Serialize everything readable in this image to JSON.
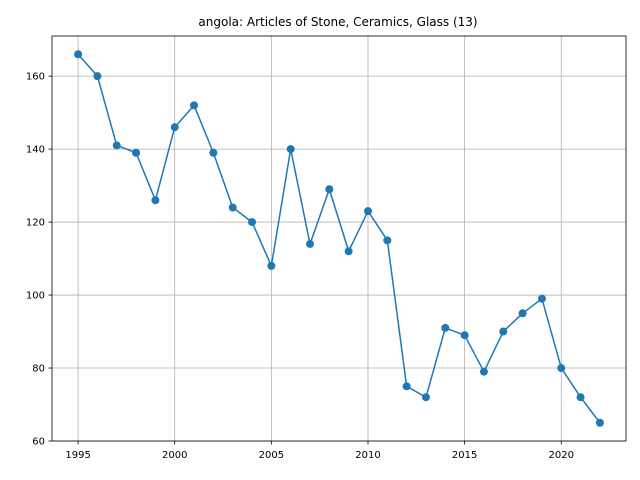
{
  "chart_data": {
    "type": "line",
    "title": "angola: Articles of Stone, Ceramics, Glass (13)",
    "xlabel": "",
    "ylabel": "",
    "x": [
      1995,
      1996,
      1997,
      1998,
      1999,
      2000,
      2001,
      2002,
      2003,
      2004,
      2005,
      2006,
      2007,
      2008,
      2009,
      2010,
      2011,
      2012,
      2013,
      2014,
      2015,
      2016,
      2017,
      2018,
      2019,
      2020,
      2021,
      2022
    ],
    "series": [
      {
        "values": [
          166,
          160,
          141,
          139,
          126,
          146,
          152,
          139,
          124,
          120,
          108,
          140,
          114,
          129,
          112,
          123,
          115,
          75,
          72,
          91,
          89,
          79,
          90,
          95,
          99,
          80,
          72,
          65
        ],
        "color": "#1f77b4",
        "marker": "circle"
      }
    ],
    "xlim": [
      1993.65,
      2023.35
    ],
    "ylim": [
      60,
      171
    ],
    "xticks": [
      "1995",
      "2000",
      "2005",
      "2010",
      "2015",
      "2020"
    ],
    "yticks": [
      "60",
      "80",
      "100",
      "120",
      "140",
      "160"
    ],
    "grid": true,
    "legend": "none"
  }
}
